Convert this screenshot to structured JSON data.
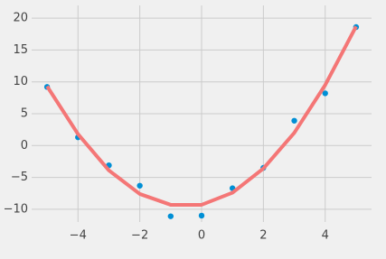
{
  "chart_data": {
    "type": "scatter",
    "x": [
      -5,
      -4,
      -3,
      -2,
      -1,
      0,
      1,
      2,
      3,
      4,
      5
    ],
    "series": [
      {
        "type": "scatter",
        "color": "#008fd5",
        "values": [
          9.2,
          1.3,
          -3.1,
          -6.3,
          -11.1,
          -11.0,
          -6.7,
          -3.5,
          3.9,
          8.2,
          18.6
        ]
      },
      {
        "type": "line",
        "color": "#f47676",
        "values": [
          9.3,
          1.8,
          -3.9,
          -7.6,
          -9.3,
          -9.3,
          -7.4,
          -3.6,
          2.0,
          9.5,
          18.7
        ]
      }
    ],
    "xlim": [
      -5.5,
      5.5
    ],
    "ylim": [
      -12,
      22
    ],
    "xticks": [
      {
        "value": -4,
        "label": "−4"
      },
      {
        "value": -2,
        "label": "−2"
      },
      0,
      2,
      4
    ],
    "yticks": [
      {
        "value": -10,
        "label": "−10"
      },
      {
        "value": -5,
        "label": "−5"
      },
      0,
      5,
      10,
      15,
      20
    ],
    "grid": true
  }
}
